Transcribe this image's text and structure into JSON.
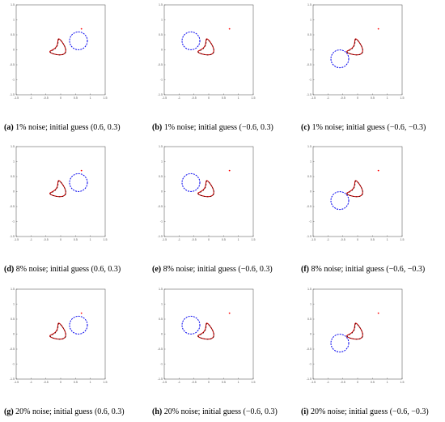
{
  "axis": {
    "xlim": [
      -1.5,
      1.5
    ],
    "ylim": [
      -1.5,
      1.5
    ],
    "xticks": [
      "-1.5",
      "-1",
      "-0.5",
      "0",
      "0.5",
      "1",
      "1.5"
    ],
    "yticks": [
      "1.5",
      "1",
      "0.5",
      "0",
      "-0.5",
      "-1",
      "-1.5"
    ]
  },
  "colors": {
    "reconstruction": "#cc0000",
    "initial_guess": "#0000ee",
    "exact": "#000000",
    "source_point": "#ff0000"
  },
  "panels": [
    {
      "label": "(a)",
      "text": " 1% noise; initial guess (0.6, 0.3)"
    },
    {
      "label": "(b)",
      "text": " 1% noise; initial guess (−0.6, 0.3)"
    },
    {
      "label": "(c)",
      "text": " 1% noise; initial guess (−0.6, −0.3)"
    },
    {
      "label": "(d)",
      "text": " 8% noise; initial guess (0.6, 0.3)"
    },
    {
      "label": "(e)",
      "text": " 8% noise; initial guess (−0.6, 0.3)"
    },
    {
      "label": "(f)",
      "text": " 8% noise; initial guess (−0.6, −0.3)"
    },
    {
      "label": "(g)",
      "text": " 20% noise; initial guess (0.6, 0.3)"
    },
    {
      "label": "(h)",
      "text": " 20% noise; initial guess (−0.6, 0.3)"
    },
    {
      "label": "(i)",
      "text": " 20% noise; initial guess (−0.6, −0.3)"
    }
  ],
  "chart_data": [
    {
      "type": "line",
      "noise": "1%",
      "initial_guess_center": [
        0.6,
        0.3
      ],
      "initial_guess_radius": 0.3,
      "obstacle_center": [
        0.0,
        0.0
      ],
      "final_center": [
        0.0,
        0.0
      ],
      "source_point": [
        0.7,
        0.7
      ]
    },
    {
      "type": "line",
      "noise": "1%",
      "initial_guess_center": [
        -0.6,
        0.3
      ],
      "initial_guess_radius": 0.3,
      "obstacle_center": [
        0.0,
        0.0
      ],
      "final_center": [
        0.0,
        0.0
      ],
      "source_point": [
        0.7,
        0.7
      ]
    },
    {
      "type": "line",
      "noise": "1%",
      "initial_guess_center": [
        -0.6,
        -0.3
      ],
      "initial_guess_radius": 0.3,
      "obstacle_center": [
        0.0,
        0.0
      ],
      "final_center": [
        0.0,
        0.0
      ],
      "source_point": [
        0.7,
        0.7
      ]
    },
    {
      "type": "line",
      "noise": "8%",
      "initial_guess_center": [
        0.6,
        0.3
      ],
      "initial_guess_radius": 0.3,
      "obstacle_center": [
        0.0,
        0.0
      ],
      "final_center": [
        0.0,
        0.0
      ],
      "source_point": [
        0.7,
        0.7
      ]
    },
    {
      "type": "line",
      "noise": "8%",
      "initial_guess_center": [
        -0.6,
        0.3
      ],
      "initial_guess_radius": 0.3,
      "obstacle_center": [
        0.0,
        0.0
      ],
      "final_center": [
        0.0,
        0.0
      ],
      "source_point": [
        0.7,
        0.7
      ]
    },
    {
      "type": "line",
      "noise": "8%",
      "initial_guess_center": [
        -0.6,
        -0.3
      ],
      "initial_guess_radius": 0.3,
      "obstacle_center": [
        0.0,
        0.0
      ],
      "final_center": [
        0.0,
        0.0
      ],
      "source_point": [
        0.7,
        0.7
      ]
    },
    {
      "type": "line",
      "noise": "20%",
      "initial_guess_center": [
        0.6,
        0.3
      ],
      "initial_guess_radius": 0.3,
      "obstacle_center": [
        0.0,
        0.0
      ],
      "final_center": [
        0.0,
        0.0
      ],
      "source_point": [
        0.7,
        0.7
      ]
    },
    {
      "type": "line",
      "noise": "20%",
      "initial_guess_center": [
        -0.6,
        0.3
      ],
      "initial_guess_radius": 0.3,
      "obstacle_center": [
        0.0,
        0.0
      ],
      "final_center": [
        0.0,
        0.0
      ],
      "source_point": [
        0.7,
        0.7
      ]
    },
    {
      "type": "line",
      "noise": "20%",
      "initial_guess_center": [
        -0.6,
        -0.3
      ],
      "initial_guess_radius": 0.3,
      "obstacle_center": [
        0.0,
        0.0
      ],
      "final_center": [
        0.0,
        0.0
      ],
      "source_point": [
        0.7,
        0.7
      ]
    }
  ]
}
